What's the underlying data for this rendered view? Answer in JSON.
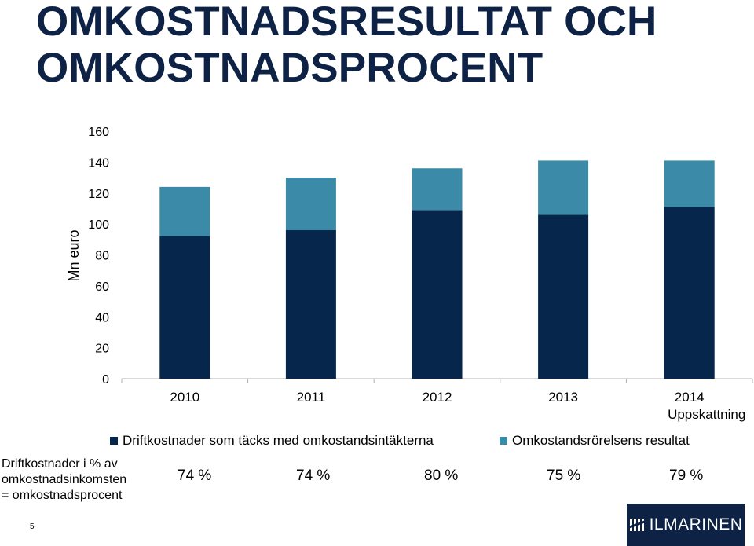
{
  "title": "OMKOSTNADSRESULTAT OCH OMKOSTNADSPROCENT",
  "chart_data": {
    "type": "bar",
    "stacked": true,
    "ylabel": "Mn euro",
    "ylim": [
      0,
      160
    ],
    "yticks": [
      0,
      20,
      40,
      60,
      80,
      100,
      120,
      140,
      160
    ],
    "categories": [
      "2010",
      "2011",
      "2012",
      "2013",
      "2014"
    ],
    "category_sublabels": [
      "",
      "",
      "",
      "",
      "Uppskattning"
    ],
    "series": [
      {
        "name": "Driftkostnader som täcks med omkostandsintäkterna",
        "color": "#06264b",
        "values": [
          92,
          96,
          109,
          106,
          111
        ]
      },
      {
        "name": "Omkostandsrörelsens resultat",
        "color": "#3a8aa8",
        "values": [
          32,
          34,
          27,
          35,
          30
        ]
      }
    ],
    "legend_position": "bottom"
  },
  "percent_row": {
    "label_lines": [
      "Driftkostnader i % av",
      "omkostnadsinkomsten",
      "= omkostnadsprocent"
    ],
    "values": [
      "74 %",
      "74 %",
      "80 %",
      "75 %",
      "79 %"
    ]
  },
  "page_number": "5",
  "logo_text": "ILMARINEN"
}
